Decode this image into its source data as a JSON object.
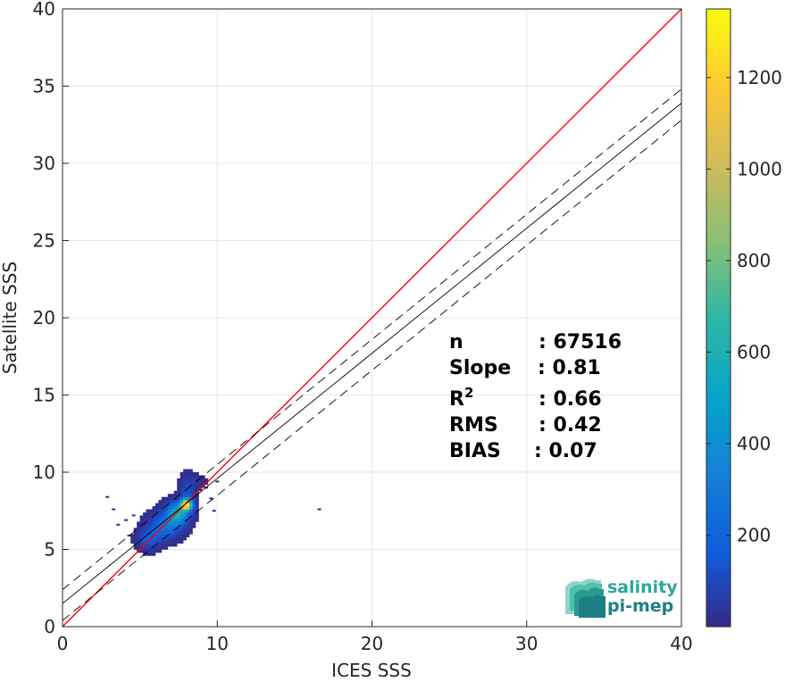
{
  "chart_data": {
    "type": "heatmap",
    "xlabel": "ICES SSS",
    "ylabel": "Satellite SSS",
    "xlim": [
      0,
      40
    ],
    "ylim": [
      0,
      40
    ],
    "xticks": [
      "0",
      "10",
      "20",
      "30",
      "40"
    ],
    "yticks": [
      "0",
      "5",
      "10",
      "15",
      "20",
      "25",
      "30",
      "35",
      "40"
    ],
    "grid": true,
    "colormap": "parula",
    "colorbar": {
      "range": [
        0,
        1350
      ],
      "ticks": [
        "200",
        "400",
        "600",
        "800",
        "1000",
        "1200"
      ]
    },
    "lines": [
      {
        "name": "identity",
        "slope": 1,
        "intercept": 0,
        "color": "#ff0000",
        "style": "solid"
      },
      {
        "name": "fit",
        "slope": 0.81,
        "intercept": 1.5,
        "color": "#000000",
        "style": "solid"
      },
      {
        "name": "fit-upper",
        "slope": 0.81,
        "intercept": 2.4,
        "color": "#000000",
        "style": "dashed"
      },
      {
        "name": "fit-lower",
        "slope": 0.81,
        "intercept": 0.4,
        "color": "#000000",
        "style": "dashed"
      }
    ],
    "density_clusters": [
      {
        "x": 7.9,
        "y": 7.8,
        "sx": 0.25,
        "sy": 0.25,
        "peak": 1340
      },
      {
        "x": 7.3,
        "y": 7.2,
        "sx": 0.45,
        "sy": 0.45,
        "peak": 600
      },
      {
        "x": 6.5,
        "y": 6.4,
        "sx": 0.6,
        "sy": 0.5,
        "peak": 280
      },
      {
        "x": 5.5,
        "y": 5.6,
        "sx": 0.45,
        "sy": 0.4,
        "peak": 170
      },
      {
        "x": 8.0,
        "y": 8.6,
        "sx": 0.3,
        "sy": 0.6,
        "peak": 120
      },
      {
        "x": 8.5,
        "y": 9.3,
        "sx": 0.4,
        "sy": 0.25,
        "peak": 30
      }
    ],
    "sparse_points": [
      [
        2.9,
        8.4
      ],
      [
        3.3,
        7.6
      ],
      [
        4.1,
        6.9
      ],
      [
        4.6,
        7.2
      ],
      [
        3.6,
        6.6
      ],
      [
        16.6,
        7.6
      ],
      [
        9.6,
        8.3
      ],
      [
        9.3,
        9.0
      ],
      [
        10.0,
        9.4
      ],
      [
        4.3,
        5.9
      ],
      [
        9.8,
        7.5
      ]
    ],
    "stats": [
      {
        "label": "n",
        "value": ": 67516"
      },
      {
        "label": "Slope",
        "value": ": 0.81"
      },
      {
        "label": "R",
        "sup": "2",
        "value": ": 0.66"
      },
      {
        "label": "RMS",
        "value": ": 0.42"
      },
      {
        "label": "BIAS",
        "value": ": 0.07"
      }
    ]
  },
  "logo": {
    "line1": "salinity",
    "line2": "pi-mep"
  },
  "colors": {
    "identity_line": "#ff0000",
    "fit_line": "#000000",
    "grid": "#e6e6e6",
    "logo": "#2aa89a"
  }
}
